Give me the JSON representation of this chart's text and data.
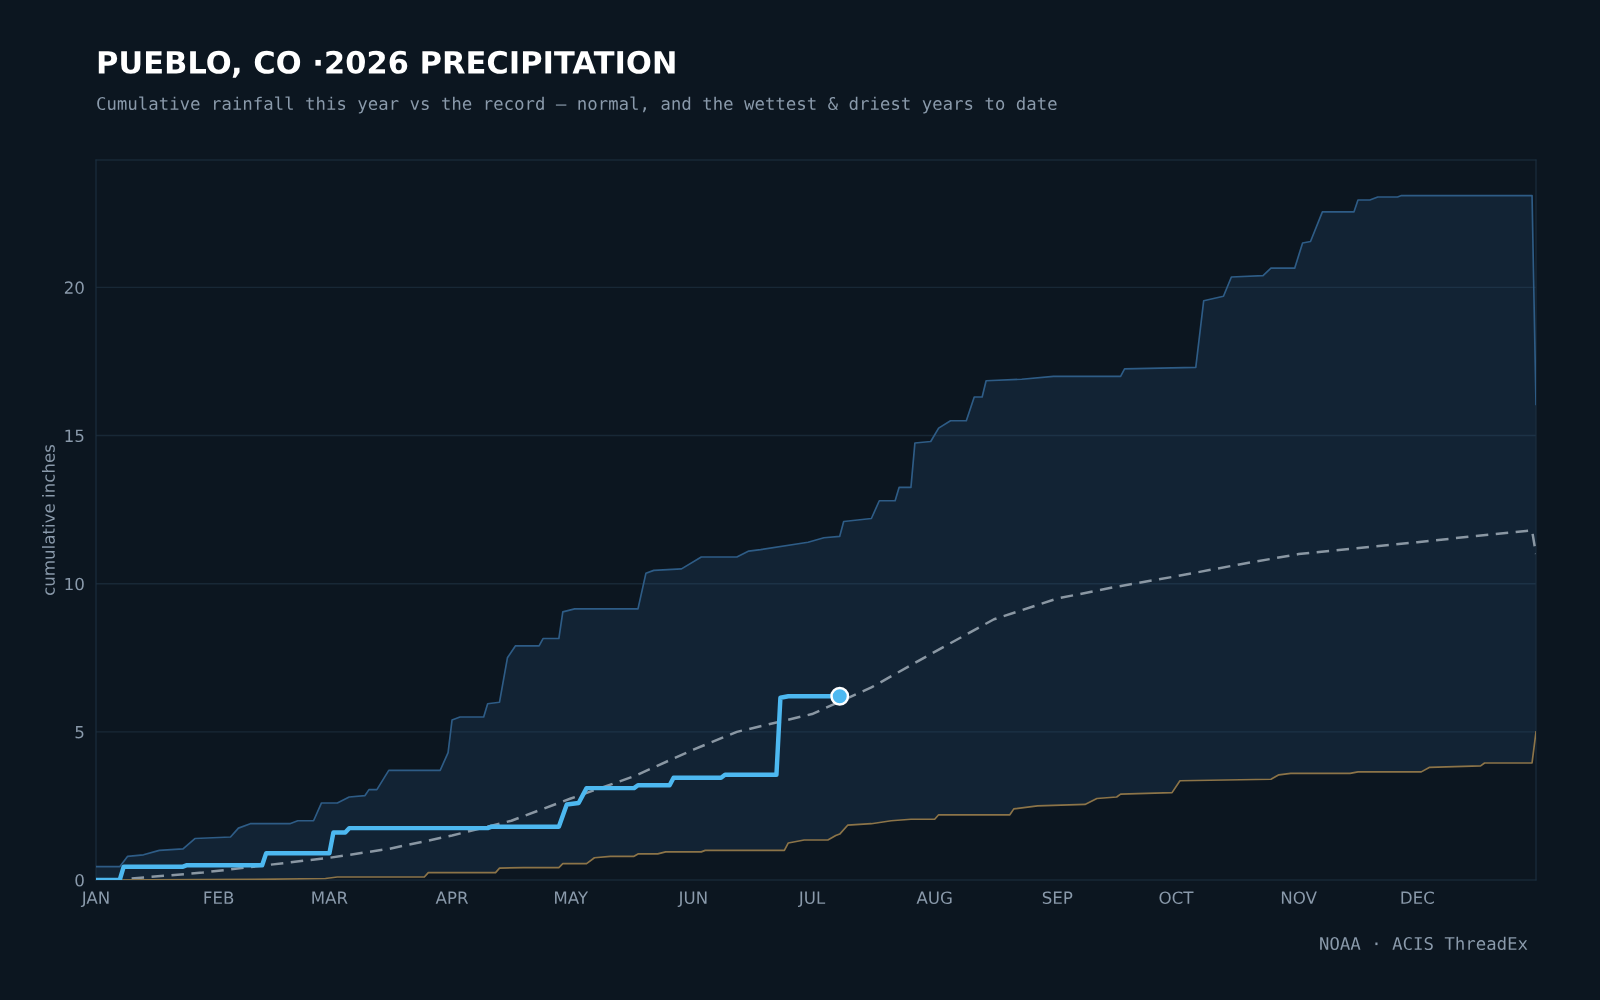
{
  "chart_data": {
    "type": "line",
    "title": "PUEBLO, CO ·2026 PRECIPITATION",
    "subtitle": "Cumulative rainfall this year vs the record — normal, and the wettest & driest years to date",
    "ylabel": "cumulative inches",
    "annotations": [
      "NOAA · ACIS ThreadEx"
    ],
    "xlim": [
      "2026-01-01",
      "2026-12-31"
    ],
    "xticks": [
      {
        "value": "2026-01-01",
        "label": "JAN"
      },
      {
        "value": "2026-02-01",
        "label": "FEB"
      },
      {
        "value": "2026-03-01",
        "label": "MAR"
      },
      {
        "value": "2026-04-01",
        "label": "APR"
      },
      {
        "value": "2026-05-01",
        "label": "MAY"
      },
      {
        "value": "2026-06-01",
        "label": "JUN"
      },
      {
        "value": "2026-07-01",
        "label": "JUL"
      },
      {
        "value": "2026-08-01",
        "label": "AUG"
      },
      {
        "value": "2026-09-01",
        "label": "SEP"
      },
      {
        "value": "2026-10-01",
        "label": "OCT"
      },
      {
        "value": "2026-11-01",
        "label": "NOV"
      },
      {
        "value": "2026-12-01",
        "label": "DEC"
      }
    ],
    "ylim": [
      0,
      24.3
    ],
    "yticks": [
      0,
      5,
      10,
      15,
      20
    ],
    "grid": "y",
    "legend": false,
    "series": [
      {
        "type": "area",
        "color": "#2e5c86",
        "x": [
          "2026-01-01",
          "2026-01-07",
          "2026-01-09",
          "2026-01-13",
          "2026-01-17",
          "2026-01-23",
          "2026-01-26",
          "2026-02-04",
          "2026-02-06",
          "2026-02-09",
          "2026-02-19",
          "2026-02-21",
          "2026-02-25",
          "2026-02-27",
          "2026-03-03",
          "2026-03-06",
          "2026-03-10",
          "2026-03-11",
          "2026-03-13",
          "2026-03-16",
          "2026-03-29",
          "2026-03-31",
          "2026-04-01",
          "2026-04-03",
          "2026-04-09",
          "2026-04-10",
          "2026-04-13",
          "2026-04-15",
          "2026-04-17",
          "2026-04-23",
          "2026-04-24",
          "2026-04-28",
          "2026-04-29",
          "2026-05-02",
          "2026-05-18",
          "2026-05-20",
          "2026-05-22",
          "2026-05-29",
          "2026-06-03",
          "2026-06-12",
          "2026-06-15",
          "2026-06-18",
          "2026-06-30",
          "2026-07-04",
          "2026-07-08",
          "2026-07-09",
          "2026-07-16",
          "2026-07-18",
          "2026-07-22",
          "2026-07-23",
          "2026-07-26",
          "2026-07-27",
          "2026-07-31",
          "2026-08-02",
          "2026-08-05",
          "2026-08-09",
          "2026-08-11",
          "2026-08-13",
          "2026-08-14",
          "2026-08-23",
          "2026-08-31",
          "2026-09-17",
          "2026-09-18",
          "2026-10-06",
          "2026-10-08",
          "2026-10-13",
          "2026-10-15",
          "2026-10-23",
          "2026-10-25",
          "2026-10-31",
          "2026-11-02",
          "2026-11-04",
          "2026-11-07",
          "2026-11-15",
          "2026-11-16",
          "2026-11-19",
          "2026-11-21",
          "2026-11-26",
          "2026-11-27",
          "2026-12-30",
          "2026-12-31"
        ],
        "values": [
          0.45,
          0.45,
          0.8,
          0.85,
          1.0,
          1.05,
          1.4,
          1.45,
          1.75,
          1.9,
          1.9,
          2.0,
          2.0,
          2.6,
          2.6,
          2.8,
          2.85,
          3.05,
          3.05,
          3.7,
          3.7,
          4.3,
          5.4,
          5.5,
          5.5,
          5.95,
          6.0,
          7.5,
          7.9,
          7.9,
          8.15,
          8.15,
          9.05,
          9.15,
          9.15,
          10.35,
          10.45,
          10.5,
          10.9,
          10.9,
          11.1,
          11.15,
          11.4,
          11.55,
          11.6,
          12.1,
          12.2,
          12.8,
          12.8,
          13.25,
          13.25,
          14.75,
          14.8,
          15.25,
          15.5,
          15.5,
          16.3,
          16.3,
          16.85,
          16.9,
          17.0,
          17.0,
          17.25,
          17.3,
          19.55,
          19.7,
          20.35,
          20.4,
          20.65,
          20.65,
          21.5,
          21.55,
          22.55,
          22.55,
          22.95,
          22.95,
          23.05,
          23.05,
          23.1,
          23.1,
          16.05
        ]
      },
      {
        "type": "area",
        "color": "#8c7448",
        "x": [
          "2026-01-01",
          "2026-02-10",
          "2026-02-28",
          "2026-03-03",
          "2026-03-25",
          "2026-03-26",
          "2026-04-12",
          "2026-04-13",
          "2026-04-19",
          "2026-04-28",
          "2026-04-29",
          "2026-05-05",
          "2026-05-07",
          "2026-05-11",
          "2026-05-17",
          "2026-05-18",
          "2026-05-23",
          "2026-05-25",
          "2026-06-03",
          "2026-06-04",
          "2026-06-24",
          "2026-06-25",
          "2026-06-27",
          "2026-06-29",
          "2026-07-05",
          "2026-07-07",
          "2026-07-08",
          "2026-07-10",
          "2026-07-16",
          "2026-07-21",
          "2026-07-26",
          "2026-08-01",
          "2026-08-02",
          "2026-08-20",
          "2026-08-21",
          "2026-08-27",
          "2026-09-08",
          "2026-09-11",
          "2026-09-16",
          "2026-09-17",
          "2026-09-30",
          "2026-10-02",
          "2026-10-25",
          "2026-10-27",
          "2026-10-30",
          "2026-11-14",
          "2026-11-16",
          "2026-12-02",
          "2026-12-04",
          "2026-12-17",
          "2026-12-18",
          "2026-12-30",
          "2026-12-31"
        ],
        "values": [
          0,
          0.02,
          0.05,
          0.1,
          0.1,
          0.25,
          0.25,
          0.4,
          0.42,
          0.42,
          0.55,
          0.55,
          0.75,
          0.8,
          0.8,
          0.88,
          0.88,
          0.95,
          0.95,
          1.0,
          1.0,
          1.25,
          1.3,
          1.35,
          1.35,
          1.5,
          1.55,
          1.85,
          1.9,
          2.0,
          2.05,
          2.05,
          2.2,
          2.2,
          2.4,
          2.5,
          2.55,
          2.75,
          2.8,
          2.9,
          2.95,
          3.35,
          3.4,
          3.55,
          3.6,
          3.6,
          3.65,
          3.65,
          3.8,
          3.85,
          3.95,
          3.95,
          5.0
        ]
      },
      {
        "color": "#8a97a3",
        "line_style": "dashed",
        "x": [
          "2026-01-10",
          "2026-01-28",
          "2026-03-01",
          "2026-03-16",
          "2026-04-01",
          "2026-04-16",
          "2026-05-01",
          "2026-05-17",
          "2026-06-01",
          "2026-06-12",
          "2026-07-01",
          "2026-07-16",
          "2026-08-01",
          "2026-08-16",
          "2026-09-01",
          "2026-09-16",
          "2026-10-01",
          "2026-10-17",
          "2026-11-01",
          "2026-12-01",
          "2026-12-15",
          "2026-12-30",
          "2026-12-31"
        ],
        "values": [
          0.05,
          0.25,
          0.75,
          1.05,
          1.5,
          2.0,
          2.75,
          3.5,
          4.4,
          5.0,
          5.6,
          6.5,
          7.7,
          8.8,
          9.5,
          9.9,
          10.25,
          10.65,
          11.0,
          11.4,
          11.6,
          11.8,
          11.0
        ]
      },
      {
        "color": "#4db8f0",
        "x": [
          "2026-01-01",
          "2026-01-07",
          "2026-01-08",
          "2026-01-23",
          "2026-01-24",
          "2026-02-12",
          "2026-02-13",
          "2026-03-01",
          "2026-03-02",
          "2026-03-05",
          "2026-03-06",
          "2026-04-10",
          "2026-04-11",
          "2026-04-28",
          "2026-04-30",
          "2026-05-03",
          "2026-05-05",
          "2026-05-17",
          "2026-05-18",
          "2026-05-26",
          "2026-05-27",
          "2026-06-08",
          "2026-06-09",
          "2026-06-22",
          "2026-06-23",
          "2026-06-25",
          "2026-07-08"
        ],
        "values": [
          0,
          0,
          0.45,
          0.45,
          0.5,
          0.5,
          0.9,
          0.9,
          1.6,
          1.6,
          1.75,
          1.75,
          1.8,
          1.8,
          2.55,
          2.6,
          3.1,
          3.1,
          3.2,
          3.2,
          3.45,
          3.45,
          3.55,
          3.55,
          6.15,
          6.2,
          6.2
        ]
      },
      {
        "type": "scatter",
        "color": "#4db8f0",
        "marker": "circle",
        "x": [
          "2026-07-08"
        ],
        "values": [
          6.2
        ]
      }
    ]
  }
}
